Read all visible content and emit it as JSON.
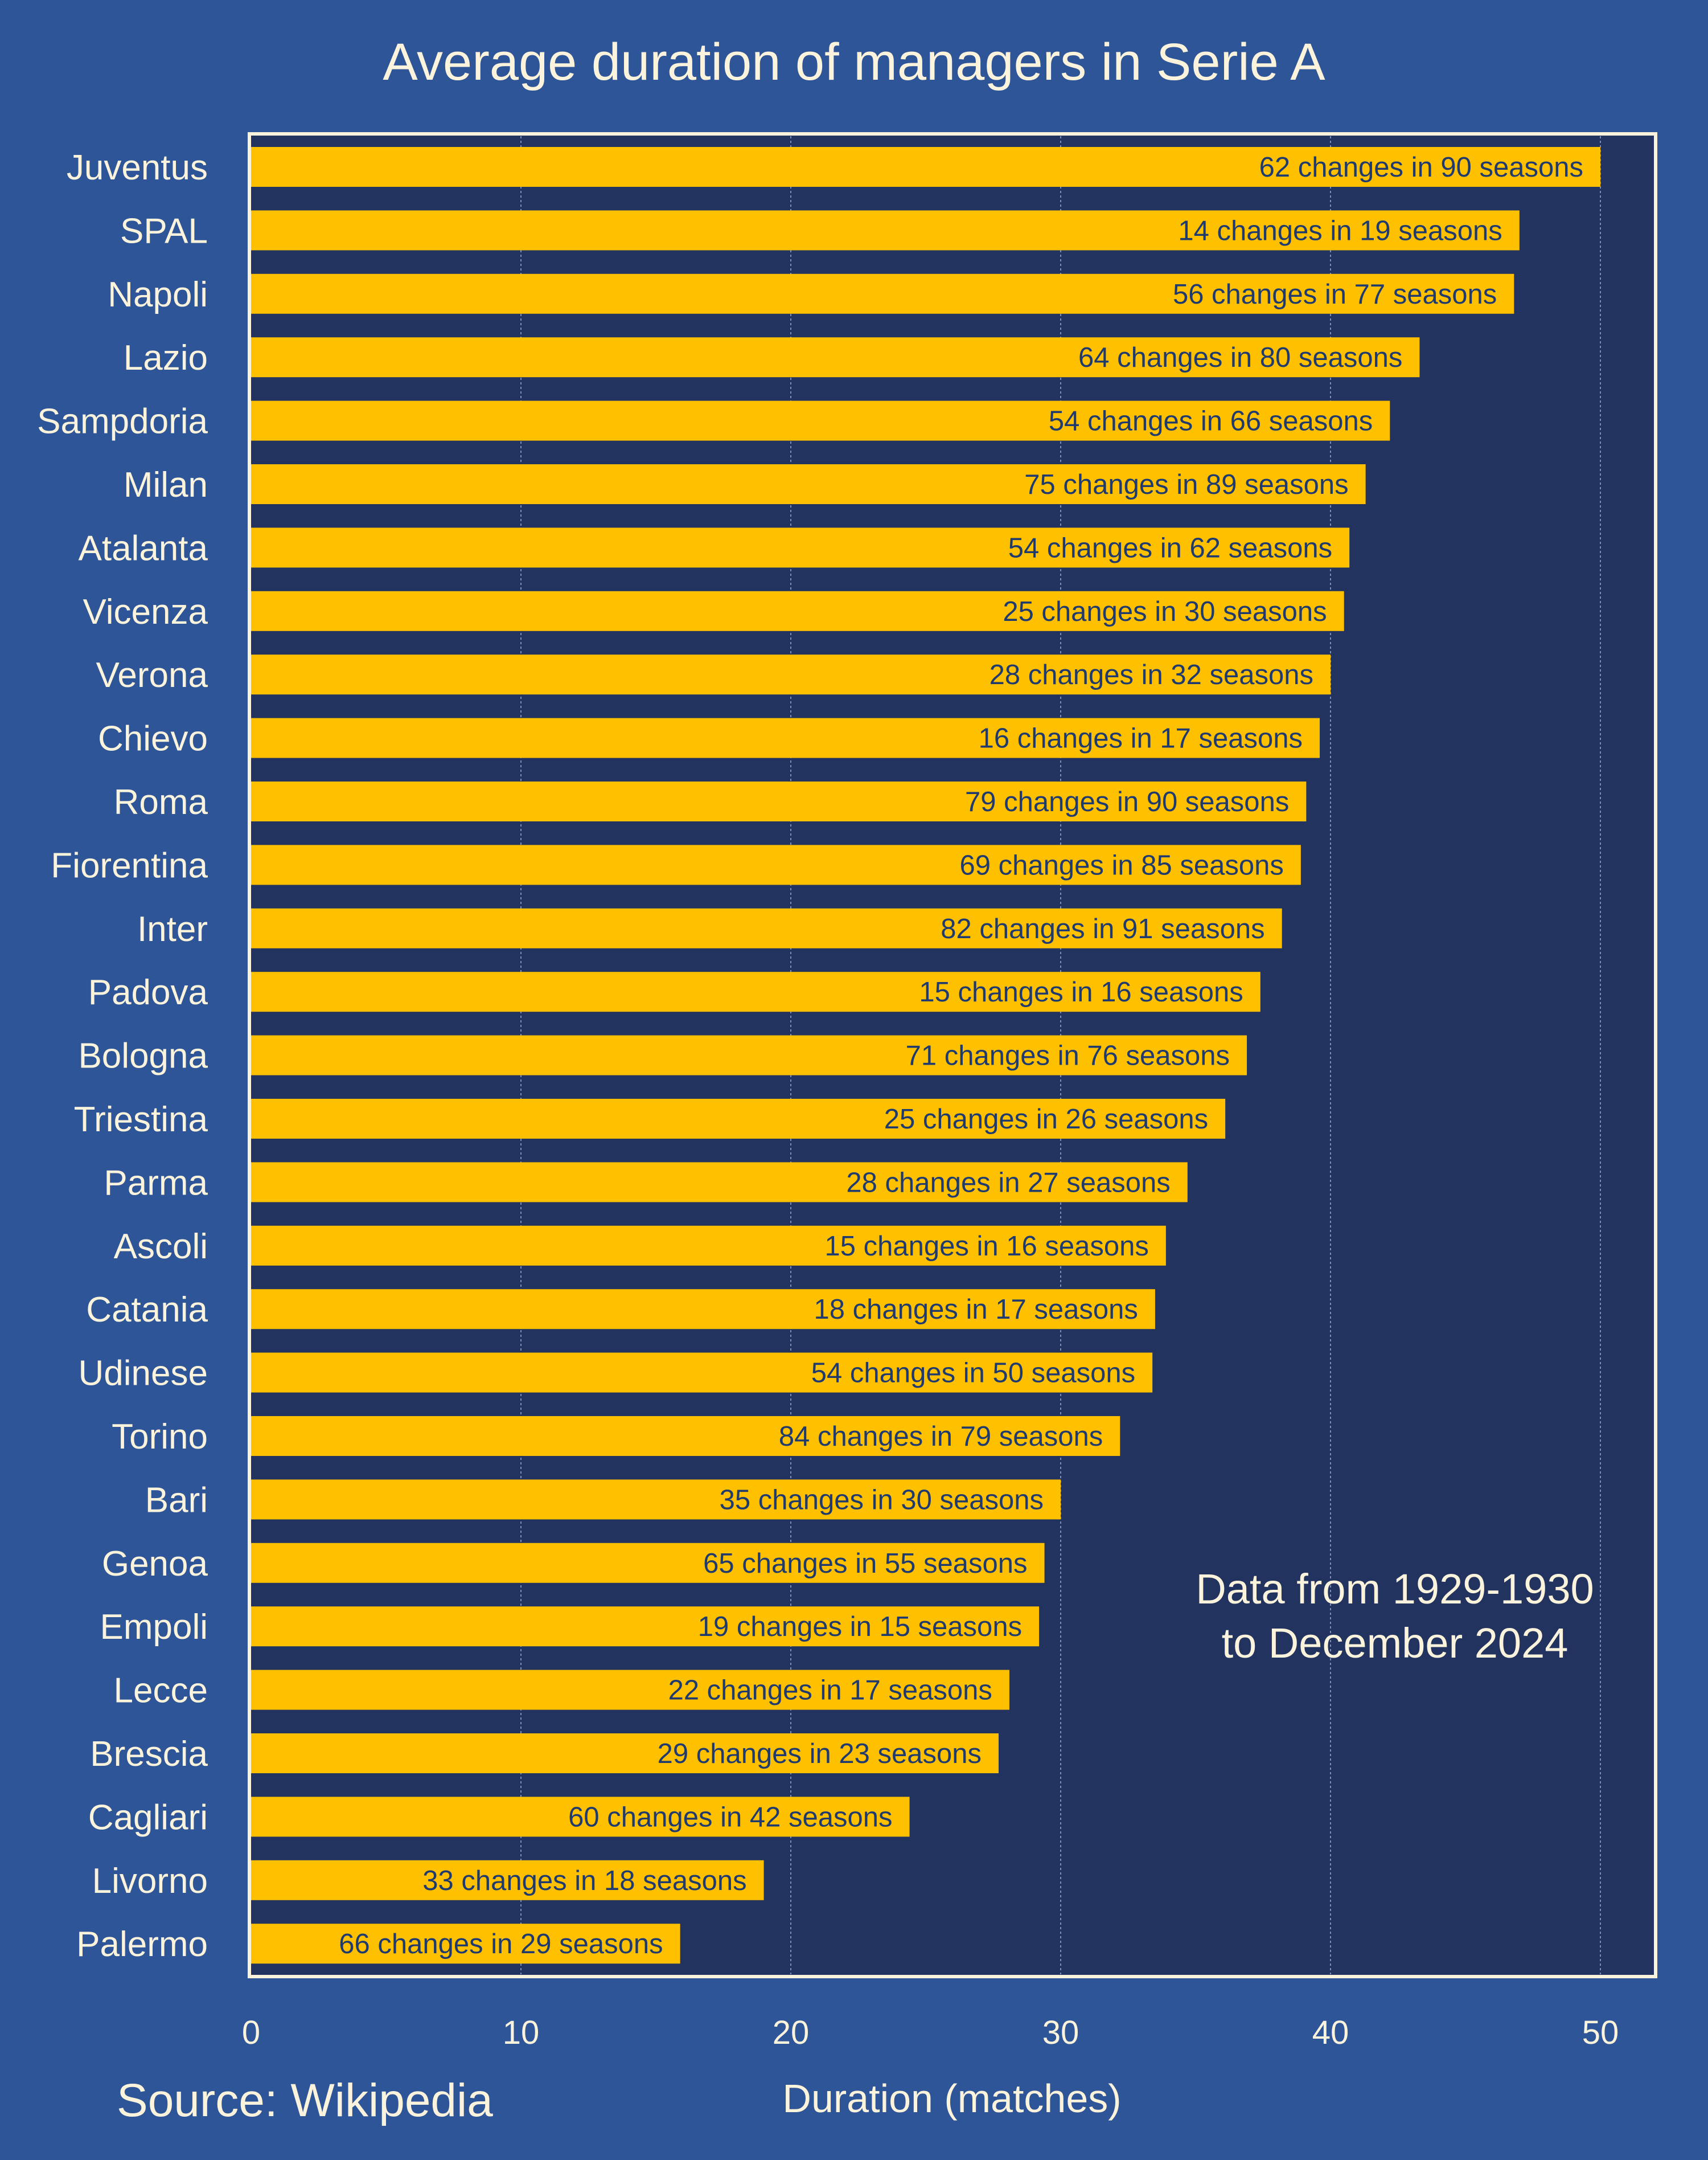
{
  "chart_data": {
    "type": "bar",
    "orientation": "horizontal",
    "title": "Average duration of managers in Serie A",
    "xlabel": "Duration (matches)",
    "ylabel": "",
    "xlim": [
      0,
      52
    ],
    "xticks": [
      0,
      10,
      20,
      30,
      40,
      50
    ],
    "grid": "vertical",
    "note": [
      "Data from 1929-1930",
      "to December 2024"
    ],
    "source": "Source: Wikipedia",
    "colors": {
      "background": "#2e5597",
      "plot": "#21335e",
      "bar": "#ffc000",
      "text": "#fcf3dc",
      "bar_text": "#1f3a6e"
    },
    "bars": [
      {
        "team": "Juventus",
        "value": 50.0,
        "label": "62 changes in 90 seasons"
      },
      {
        "team": "SPAL",
        "value": 47.0,
        "label": "14 changes in 19 seasons"
      },
      {
        "team": "Napoli",
        "value": 46.8,
        "label": "56 changes in 77 seasons"
      },
      {
        "team": "Lazio",
        "value": 43.3,
        "label": "64 changes in 80 seasons"
      },
      {
        "team": "Sampdoria",
        "value": 42.2,
        "label": "54 changes in 66 seasons"
      },
      {
        "team": "Milan",
        "value": 41.3,
        "label": "75 changes in 89 seasons"
      },
      {
        "team": "Atalanta",
        "value": 40.7,
        "label": "54 changes in 62 seasons"
      },
      {
        "team": "Vicenza",
        "value": 40.5,
        "label": "25 changes in 30 seasons"
      },
      {
        "team": "Verona",
        "value": 40.0,
        "label": "28 changes in 32 seasons"
      },
      {
        "team": "Chievo",
        "value": 39.6,
        "label": "16 changes in 17 seasons"
      },
      {
        "team": "Roma",
        "value": 39.1,
        "label": "79 changes in 90 seasons"
      },
      {
        "team": "Fiorentina",
        "value": 38.9,
        "label": "69 changes in 85 seasons"
      },
      {
        "team": "Inter",
        "value": 38.2,
        "label": "82 changes in 91 seasons"
      },
      {
        "team": "Padova",
        "value": 37.4,
        "label": "15 changes in 16 seasons"
      },
      {
        "team": "Bologna",
        "value": 36.9,
        "label": "71 changes in 76 seasons"
      },
      {
        "team": "Triestina",
        "value": 36.1,
        "label": "25 changes in 26 seasons"
      },
      {
        "team": "Parma",
        "value": 34.7,
        "label": "28 changes in 27 seasons"
      },
      {
        "team": "Ascoli",
        "value": 33.9,
        "label": "15 changes in 16 seasons"
      },
      {
        "team": "Catania",
        "value": 33.5,
        "label": "18 changes in 17 seasons"
      },
      {
        "team": "Udinese",
        "value": 33.4,
        "label": "54 changes in 50 seasons"
      },
      {
        "team": "Torino",
        "value": 32.2,
        "label": "84 changes in 79 seasons"
      },
      {
        "team": "Bari",
        "value": 30.0,
        "label": "35 changes in 30 seasons"
      },
      {
        "team": "Genoa",
        "value": 29.4,
        "label": "65 changes in 55 seasons"
      },
      {
        "team": "Empoli",
        "value": 29.2,
        "label": "19 changes in 15 seasons"
      },
      {
        "team": "Lecce",
        "value": 28.1,
        "label": "22 changes in 17 seasons"
      },
      {
        "team": "Brescia",
        "value": 27.7,
        "label": "29 changes in 23 seasons"
      },
      {
        "team": "Cagliari",
        "value": 24.4,
        "label": "60 changes in 42 seasons"
      },
      {
        "team": "Livorno",
        "value": 19.0,
        "label": "33 changes in 18 seasons"
      },
      {
        "team": "Palermo",
        "value": 15.9,
        "label": "66 changes in 29 seasons"
      }
    ]
  }
}
